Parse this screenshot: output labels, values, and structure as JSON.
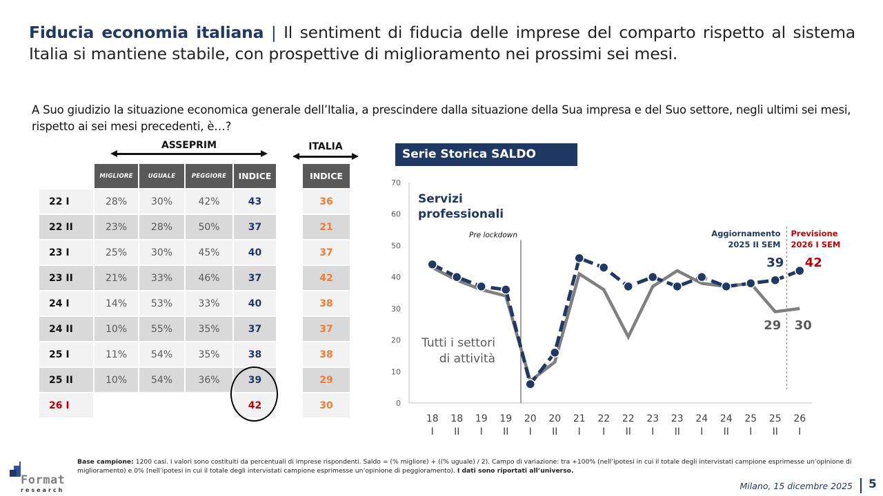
{
  "header": {
    "title_bold": "Fiducia economia italiana",
    "title_sep": "|",
    "title_rest": "Il sentiment di fiducia delle imprese del comparto rispetto al sistema Italia si mantiene stabile, con prospettive di miglioramento nei prossimi sei mesi."
  },
  "question": "A Suo giudizio la situazione economica generale dell’Italia, a prescindere dalla situazione della Sua impresa e del Suo settore, negli ultimi sei mesi, rispetto ai sei mesi precedenti, è…?",
  "asseprim_table": {
    "group_label": "ASSEPRIM",
    "columns": [
      "MIGLIORE",
      "UGUALE",
      "PEGGIORE",
      "INDICE"
    ],
    "rows": [
      {
        "period": "22 I",
        "migliore": "28%",
        "uguale": "30%",
        "peggiore": "42%",
        "indice": "43"
      },
      {
        "period": "22 II",
        "migliore": "23%",
        "uguale": "28%",
        "peggiore": "50%",
        "indice": "37"
      },
      {
        "period": "23 I",
        "migliore": "25%",
        "uguale": "30%",
        "peggiore": "45%",
        "indice": "40"
      },
      {
        "period": "23 II",
        "migliore": "21%",
        "uguale": "33%",
        "peggiore": "46%",
        "indice": "37"
      },
      {
        "period": "24 I",
        "migliore": "14%",
        "uguale": "53%",
        "peggiore": "33%",
        "indice": "40"
      },
      {
        "period": "24 II",
        "migliore": "10%",
        "uguale": "55%",
        "peggiore": "35%",
        "indice": "37"
      },
      {
        "period": "25 I",
        "migliore": "11%",
        "uguale": "54%",
        "peggiore": "35%",
        "indice": "38"
      },
      {
        "period": "25 II",
        "migliore": "10%",
        "uguale": "54%",
        "peggiore": "36%",
        "indice": "39"
      },
      {
        "period": "26 I",
        "migliore": "",
        "uguale": "",
        "peggiore": "",
        "indice": "42"
      }
    ]
  },
  "italia_table": {
    "group_label": "ITALIA",
    "column": "INDICE",
    "values": [
      "36",
      "21",
      "37",
      "42",
      "38",
      "37",
      "38",
      "29",
      "30"
    ]
  },
  "chart_header": "Serie Storica SALDO",
  "chart_data": {
    "type": "line",
    "title": "Serie Storica SALDO",
    "xlabel": "",
    "ylabel": "",
    "ylim": [
      0,
      70
    ],
    "yticks": [
      0,
      10,
      20,
      30,
      40,
      50,
      60,
      70
    ],
    "grid": false,
    "categories": [
      [
        "18",
        "I"
      ],
      [
        "18",
        "II"
      ],
      [
        "19",
        "I"
      ],
      [
        "19",
        "II"
      ],
      [
        "20",
        "I"
      ],
      [
        "20",
        "II"
      ],
      [
        "21",
        "I"
      ],
      [
        "22",
        "I"
      ],
      [
        "22",
        "II"
      ],
      [
        "23",
        "I"
      ],
      [
        "23",
        "II"
      ],
      [
        "24",
        "I"
      ],
      [
        "24",
        "II"
      ],
      [
        "25",
        "I"
      ],
      [
        "25",
        "II"
      ],
      [
        "26",
        "I"
      ]
    ],
    "series": [
      {
        "name": "Servizi professionali",
        "color": "#1f3864",
        "style": "dashed-markers",
        "values": [
          44,
          40,
          37,
          36,
          6,
          16,
          46,
          43,
          37,
          40,
          37,
          40,
          37,
          38,
          39,
          42
        ]
      },
      {
        "name": "Tutti i settori di attività",
        "color": "#7f7f7f",
        "style": "solid",
        "values": [
          43,
          39,
          36,
          34,
          7,
          13,
          41,
          36,
          21,
          37,
          42,
          38,
          37,
          38,
          29,
          30
        ]
      }
    ],
    "annotations": {
      "series1_label": [
        "Servizi",
        "professionali"
      ],
      "series2_label": [
        "Tutti i settori",
        "di attività"
      ],
      "pre_lockdown": "Pre lockdown",
      "update_label": [
        "Aggiornamento",
        "2025 II SEM"
      ],
      "forecast_label": [
        "Previsione",
        "2026 I SEM"
      ],
      "value_labels": {
        "s1_last_actual": "39",
        "s1_forecast": "42",
        "s2_last_actual": "29",
        "s2_forecast": "30"
      }
    },
    "colors": {
      "series1": "#1f3864",
      "series2": "#7f7f7f",
      "forecast": "#c00000"
    }
  },
  "footer": {
    "note_bold": "Base campione:",
    "note_text": " 1200 casi. I valori sono costituiti da percentuali di imprese rispondenti. Saldo = (% migliore) + ((% uguale) / 2). Campo di variazione: tra +100% (nell’ipotesi in cui il totale degli intervistati campione esprimesse un’opinione di miglioramento) e 0% (nell’ipotesi in cui il totale degli intervistati campione esprimesse un’opinione di peggioramento). ",
    "note_end_bold": "I dati sono riportati all’universo.",
    "logo_word": "Format",
    "logo_sub": "research",
    "date": "Milano, 15 dicembre 2025",
    "page": "5"
  }
}
